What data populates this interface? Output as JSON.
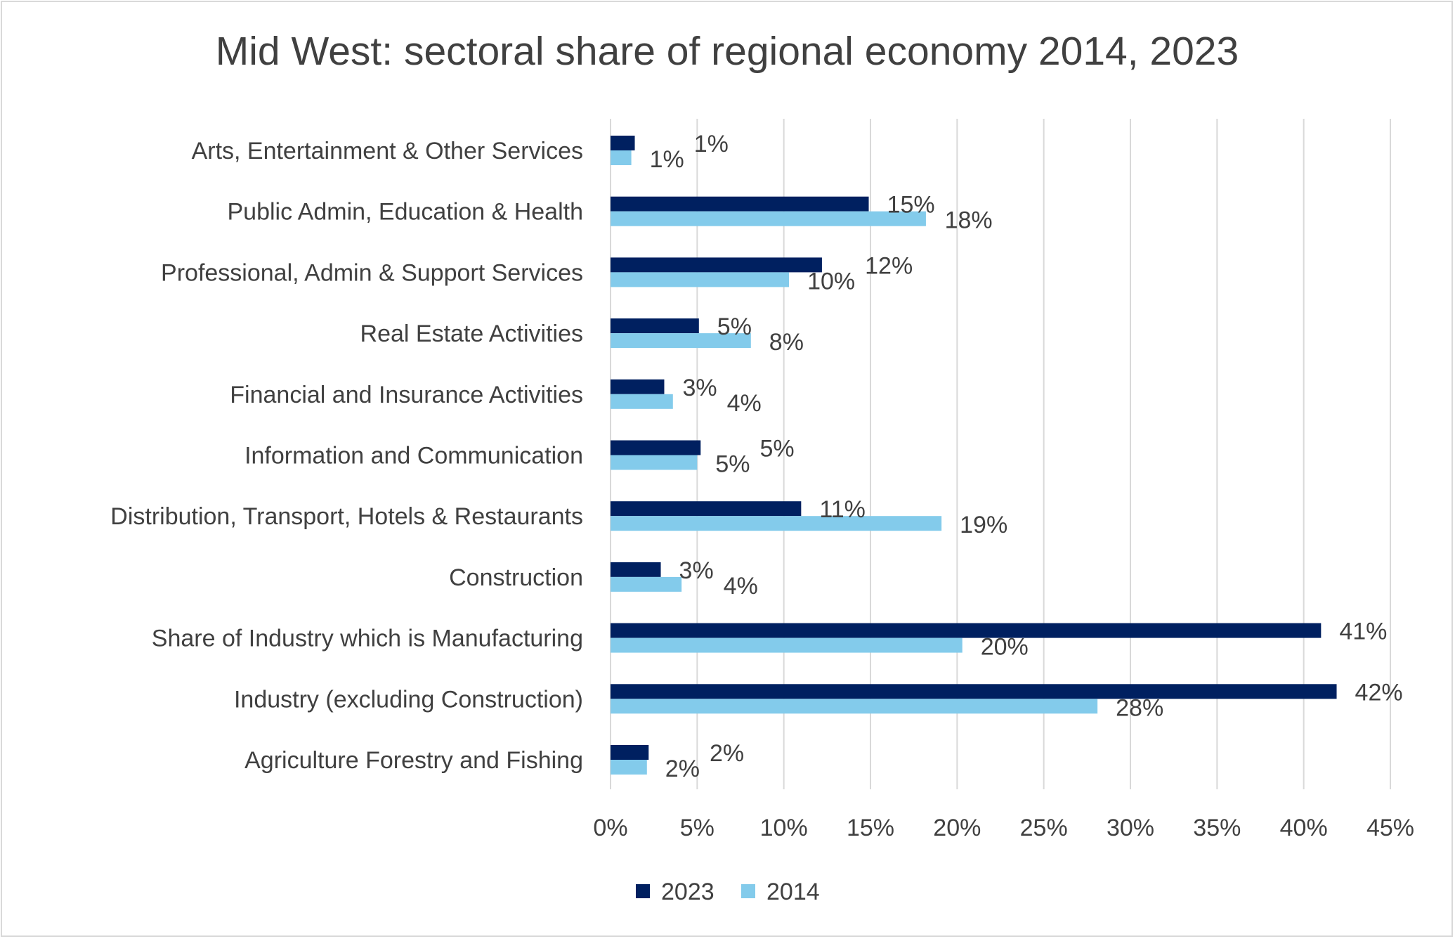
{
  "chart_data": {
    "type": "bar",
    "orientation": "horizontal",
    "title": "Mid West: sectoral share of regional economy 2014, 2023",
    "xlabel": "",
    "ylabel": "",
    "xlim": [
      0,
      45
    ],
    "x_ticks": [
      "0%",
      "5%",
      "10%",
      "15%",
      "20%",
      "25%",
      "30%",
      "35%",
      "40%",
      "45%"
    ],
    "grid": "vertical",
    "legend_position": "bottom",
    "categories": [
      "Arts, Entertainment & Other Services",
      "Public Admin, Education & Health",
      "Professional, Admin & Support Services",
      "Real Estate Activities",
      "Financial and Insurance Activities",
      "Information and Communication",
      "Distribution, Transport, Hotels & Restaurants",
      "Construction",
      "Share of Industry which is Manufacturing",
      "Industry (excluding Construction)",
      "Agriculture Forestry and Fishing"
    ],
    "series": [
      {
        "name": "2023",
        "color": "#002060",
        "values": [
          1.4,
          14.9,
          12.2,
          5.1,
          3.1,
          5.2,
          11.0,
          2.9,
          41.0,
          41.9,
          2.2
        ],
        "labels": [
          "1%",
          "15%",
          "12%",
          "5%",
          "3%",
          "5%",
          "11%",
          "3%",
          "41%",
          "42%",
          "2%"
        ]
      },
      {
        "name": "2014",
        "color": "#83CBEB",
        "values": [
          1.2,
          18.2,
          10.3,
          8.1,
          3.6,
          5.0,
          19.1,
          4.1,
          20.3,
          28.1,
          2.1
        ],
        "labels": [
          "1%",
          "18%",
          "10%",
          "8%",
          "4%",
          "5%",
          "19%",
          "4%",
          "20%",
          "28%",
          "2%"
        ]
      }
    ]
  }
}
